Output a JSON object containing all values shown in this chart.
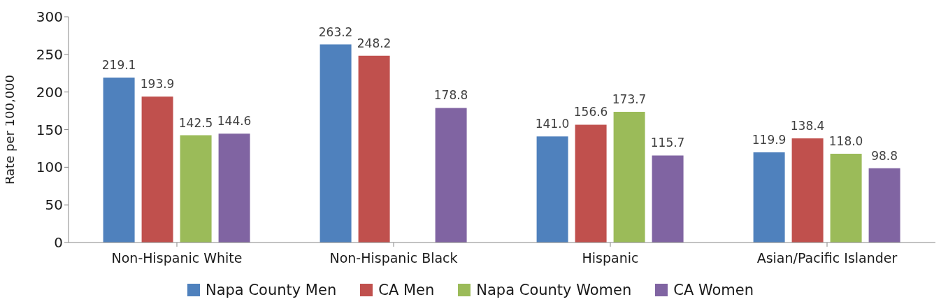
{
  "chart_data": {
    "type": "bar",
    "ylabel": "Rate per 100,000",
    "categories": [
      "Non-Hispanic White",
      "Non-Hispanic Black",
      "Hispanic",
      "Asian/Pacific Islander"
    ],
    "series": [
      {
        "name": "Napa County Men",
        "color": "#4f81bd",
        "values": [
          219.1,
          263.2,
          141.0,
          119.9
        ],
        "value_labels": [
          "219.1",
          "263.2",
          "141.0",
          "119.9"
        ]
      },
      {
        "name": "CA Men",
        "color": "#c0504d",
        "values": [
          193.9,
          248.2,
          156.6,
          138.4
        ],
        "value_labels": [
          "193.9",
          "248.2",
          "156.6",
          "138.4"
        ]
      },
      {
        "name": "Napa County Women",
        "color": "#9bbb59",
        "values": [
          142.5,
          null,
          173.7,
          118.0
        ],
        "value_labels": [
          "142.5",
          null,
          "173.7",
          "118.0"
        ]
      },
      {
        "name": "CA Women",
        "color": "#8064a2",
        "values": [
          144.6,
          178.8,
          115.7,
          98.8
        ],
        "value_labels": [
          "144.6",
          "178.8",
          "115.7",
          "98.8"
        ]
      }
    ],
    "ylim": [
      0,
      300
    ],
    "yticks": [
      0,
      50,
      100,
      150,
      200,
      250,
      300
    ],
    "grid": false,
    "legend": "bottom"
  }
}
